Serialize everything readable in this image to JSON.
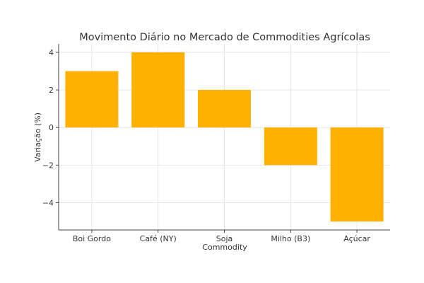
{
  "chart_data": {
    "type": "bar",
    "title": "Movimento Diário no Mercado de Commodities Agrícolas",
    "xlabel": "Commodity",
    "ylabel": "Variação (%)",
    "categories": [
      "Boi Gordo",
      "Café (NY)",
      "Soja",
      "Milho (B3)",
      "Açúcar"
    ],
    "values": [
      3,
      4,
      2,
      -2,
      -5
    ],
    "ylim": [
      -5.45,
      4.45
    ],
    "yticks": [
      -4,
      -2,
      0,
      2,
      4
    ],
    "ytick_labels": [
      "−4",
      "−2",
      "0",
      "2",
      "4"
    ],
    "grid": true,
    "bar_color": "#FFB000",
    "legend": null
  }
}
